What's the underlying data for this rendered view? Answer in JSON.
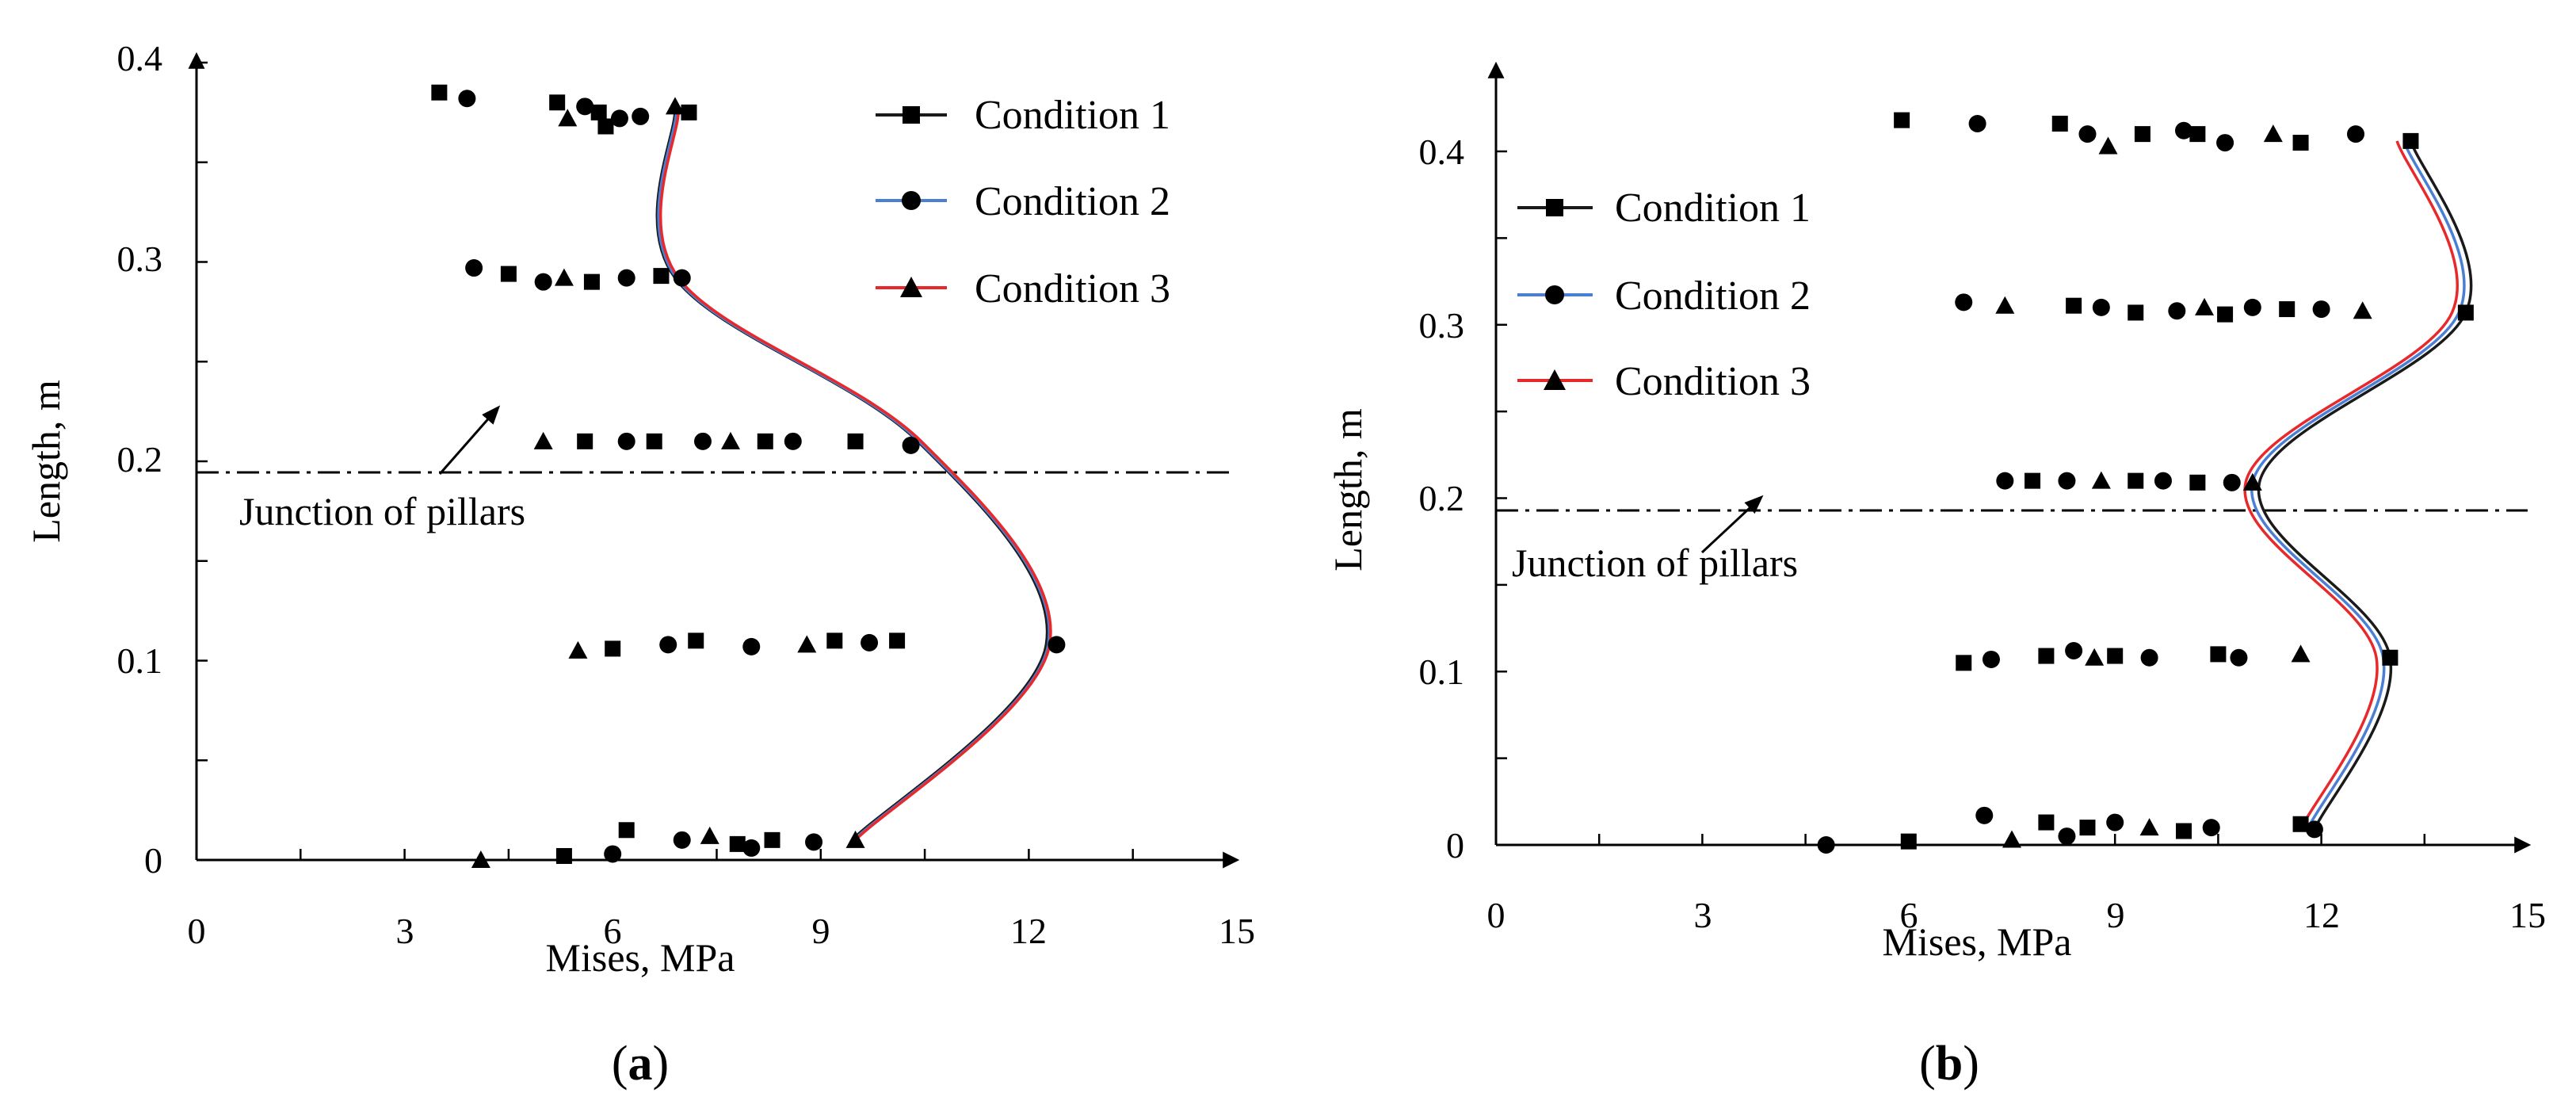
{
  "colors": {
    "condition1": "#1a1a1a",
    "condition2": "#4a7fd4",
    "condition3": "#e8292c",
    "markers": "#000000"
  },
  "chart_data": [
    {
      "type": "scatter",
      "panel_label": "a",
      "xlabel": "Mises, MPa",
      "ylabel": "Length, m",
      "xlim": [
        0,
        15
      ],
      "ylim": [
        0,
        0.4
      ],
      "xticks": [
        0,
        3,
        6,
        9,
        12,
        15
      ],
      "yticks": [
        0,
        0.1,
        0.2,
        0.3,
        0.4
      ],
      "xtick_labels": [
        "0",
        "3",
        "6",
        "9",
        "12",
        "15"
      ],
      "ytick_labels": [
        "0",
        "0.1",
        "0.2",
        "0.3",
        "0.4"
      ],
      "legend": [
        "Condition 1",
        "Condition 2",
        "Condition 3"
      ],
      "legend_position": "top-right",
      "junction": {
        "y": 0.193,
        "label": "Junction of pillars",
        "arrow_to": [
          3.6,
          0.225
        ],
        "arrow_from": [
          2.8,
          0.195
        ]
      },
      "scatter_points": [
        [
          3.5,
          0.385
        ],
        [
          3.9,
          0.382
        ],
        [
          5.2,
          0.38
        ],
        [
          5.6,
          0.378
        ],
        [
          5.35,
          0.372
        ],
        [
          5.8,
          0.375
        ],
        [
          6.1,
          0.372
        ],
        [
          5.9,
          0.368
        ],
        [
          6.4,
          0.373
        ],
        [
          6.9,
          0.378
        ],
        [
          7.1,
          0.375
        ],
        [
          4.0,
          0.297
        ],
        [
          4.5,
          0.294
        ],
        [
          5.0,
          0.29
        ],
        [
          5.3,
          0.292
        ],
        [
          5.7,
          0.29
        ],
        [
          6.2,
          0.292
        ],
        [
          6.7,
          0.293
        ],
        [
          7.0,
          0.292
        ],
        [
          5.0,
          0.21
        ],
        [
          5.6,
          0.21
        ],
        [
          6.2,
          0.21
        ],
        [
          6.6,
          0.21
        ],
        [
          7.3,
          0.21
        ],
        [
          7.7,
          0.21
        ],
        [
          8.2,
          0.21
        ],
        [
          8.6,
          0.21
        ],
        [
          9.5,
          0.21
        ],
        [
          10.3,
          0.208
        ],
        [
          5.5,
          0.105
        ],
        [
          6.0,
          0.106
        ],
        [
          6.8,
          0.108
        ],
        [
          7.2,
          0.11
        ],
        [
          8.0,
          0.107
        ],
        [
          8.8,
          0.108
        ],
        [
          9.2,
          0.11
        ],
        [
          9.7,
          0.109
        ],
        [
          10.1,
          0.11
        ],
        [
          12.4,
          0.108
        ],
        [
          4.1,
          0.0
        ],
        [
          5.3,
          0.002
        ],
        [
          6.0,
          0.003
        ],
        [
          6.2,
          0.015
        ],
        [
          7.0,
          0.01
        ],
        [
          7.4,
          0.012
        ],
        [
          7.8,
          0.008
        ],
        [
          8.0,
          0.006
        ],
        [
          8.3,
          0.01
        ],
        [
          8.9,
          0.009
        ],
        [
          9.5,
          0.01
        ]
      ],
      "series": [
        {
          "name": "Condition 1",
          "x": [
            9.45,
            12.25,
            10.4,
            6.9,
            6.9
          ],
          "y": [
            0.01,
            0.108,
            0.21,
            0.292,
            0.376
          ]
        },
        {
          "name": "Condition 2",
          "x": [
            9.48,
            12.28,
            10.42,
            6.92,
            6.92
          ],
          "y": [
            0.01,
            0.108,
            0.21,
            0.292,
            0.376
          ]
        },
        {
          "name": "Condition 3",
          "x": [
            9.5,
            12.3,
            10.45,
            6.95,
            6.95
          ],
          "y": [
            0.01,
            0.108,
            0.21,
            0.292,
            0.376
          ]
        }
      ]
    },
    {
      "type": "scatter",
      "panel_label": "b",
      "xlabel": "Mises, MPa",
      "ylabel": "Length, m",
      "xlim": [
        0,
        15
      ],
      "ylim": [
        0,
        0.45
      ],
      "xticks": [
        0,
        3,
        6,
        9,
        12,
        15
      ],
      "yticks": [
        0,
        0.1,
        0.2,
        0.3,
        0.4
      ],
      "xtick_labels": [
        "0",
        "3",
        "6",
        "9",
        "12",
        "15"
      ],
      "ytick_labels": [
        "0",
        "0.1",
        "0.2",
        "0.3",
        "0.4"
      ],
      "legend": [
        "Condition 1",
        "Condition 2",
        "Condition 3"
      ],
      "legend_position": "top-left",
      "junction": {
        "y": 0.193,
        "label": "Junction of pillars",
        "arrow_to": [
          3.8,
          0.2
        ],
        "arrow_from": [
          3.0,
          0.15
        ]
      },
      "scatter_points": [
        [
          5.9,
          0.418
        ],
        [
          7.0,
          0.416
        ],
        [
          8.2,
          0.416
        ],
        [
          8.6,
          0.41
        ],
        [
          8.9,
          0.403
        ],
        [
          9.4,
          0.41
        ],
        [
          10.0,
          0.412
        ],
        [
          10.2,
          0.41
        ],
        [
          10.6,
          0.405
        ],
        [
          11.3,
          0.41
        ],
        [
          11.7,
          0.405
        ],
        [
          12.5,
          0.41
        ],
        [
          13.3,
          0.406
        ],
        [
          6.8,
          0.313
        ],
        [
          7.4,
          0.311
        ],
        [
          8.4,
          0.311
        ],
        [
          8.8,
          0.31
        ],
        [
          9.3,
          0.307
        ],
        [
          9.9,
          0.308
        ],
        [
          10.3,
          0.31
        ],
        [
          10.6,
          0.306
        ],
        [
          11.0,
          0.31
        ],
        [
          11.5,
          0.309
        ],
        [
          12.0,
          0.309
        ],
        [
          12.6,
          0.308
        ],
        [
          14.1,
          0.307
        ],
        [
          7.4,
          0.21
        ],
        [
          7.8,
          0.21
        ],
        [
          8.3,
          0.21
        ],
        [
          8.8,
          0.21
        ],
        [
          9.3,
          0.21
        ],
        [
          9.7,
          0.21
        ],
        [
          10.2,
          0.209
        ],
        [
          10.7,
          0.209
        ],
        [
          11.0,
          0.209
        ],
        [
          6.8,
          0.105
        ],
        [
          7.2,
          0.107
        ],
        [
          8.0,
          0.109
        ],
        [
          8.4,
          0.112
        ],
        [
          8.7,
          0.108
        ],
        [
          9.0,
          0.109
        ],
        [
          9.5,
          0.108
        ],
        [
          10.5,
          0.11
        ],
        [
          10.8,
          0.108
        ],
        [
          11.7,
          0.11
        ],
        [
          13.0,
          0.108
        ],
        [
          4.8,
          0.0
        ],
        [
          6.0,
          0.002
        ],
        [
          7.1,
          0.017
        ],
        [
          7.5,
          0.003
        ],
        [
          8.0,
          0.013
        ],
        [
          8.3,
          0.005
        ],
        [
          8.6,
          0.01
        ],
        [
          9.0,
          0.013
        ],
        [
          9.5,
          0.01
        ],
        [
          10.0,
          0.008
        ],
        [
          10.4,
          0.01
        ],
        [
          11.7,
          0.012
        ],
        [
          11.9,
          0.009
        ]
      ],
      "series": [
        {
          "name": "Condition 1",
          "x": [
            11.9,
            13.0,
            11.1,
            14.1,
            13.3
          ],
          "y": [
            0.009,
            0.108,
            0.209,
            0.307,
            0.406
          ]
        },
        {
          "name": "Condition 2",
          "x": [
            11.8,
            12.9,
            11.0,
            14.0,
            13.2
          ],
          "y": [
            0.009,
            0.108,
            0.209,
            0.307,
            0.406
          ]
        },
        {
          "name": "Condition 3",
          "x": [
            11.7,
            12.8,
            10.9,
            13.9,
            13.1
          ],
          "y": [
            0.009,
            0.108,
            0.209,
            0.307,
            0.406
          ]
        }
      ]
    }
  ]
}
